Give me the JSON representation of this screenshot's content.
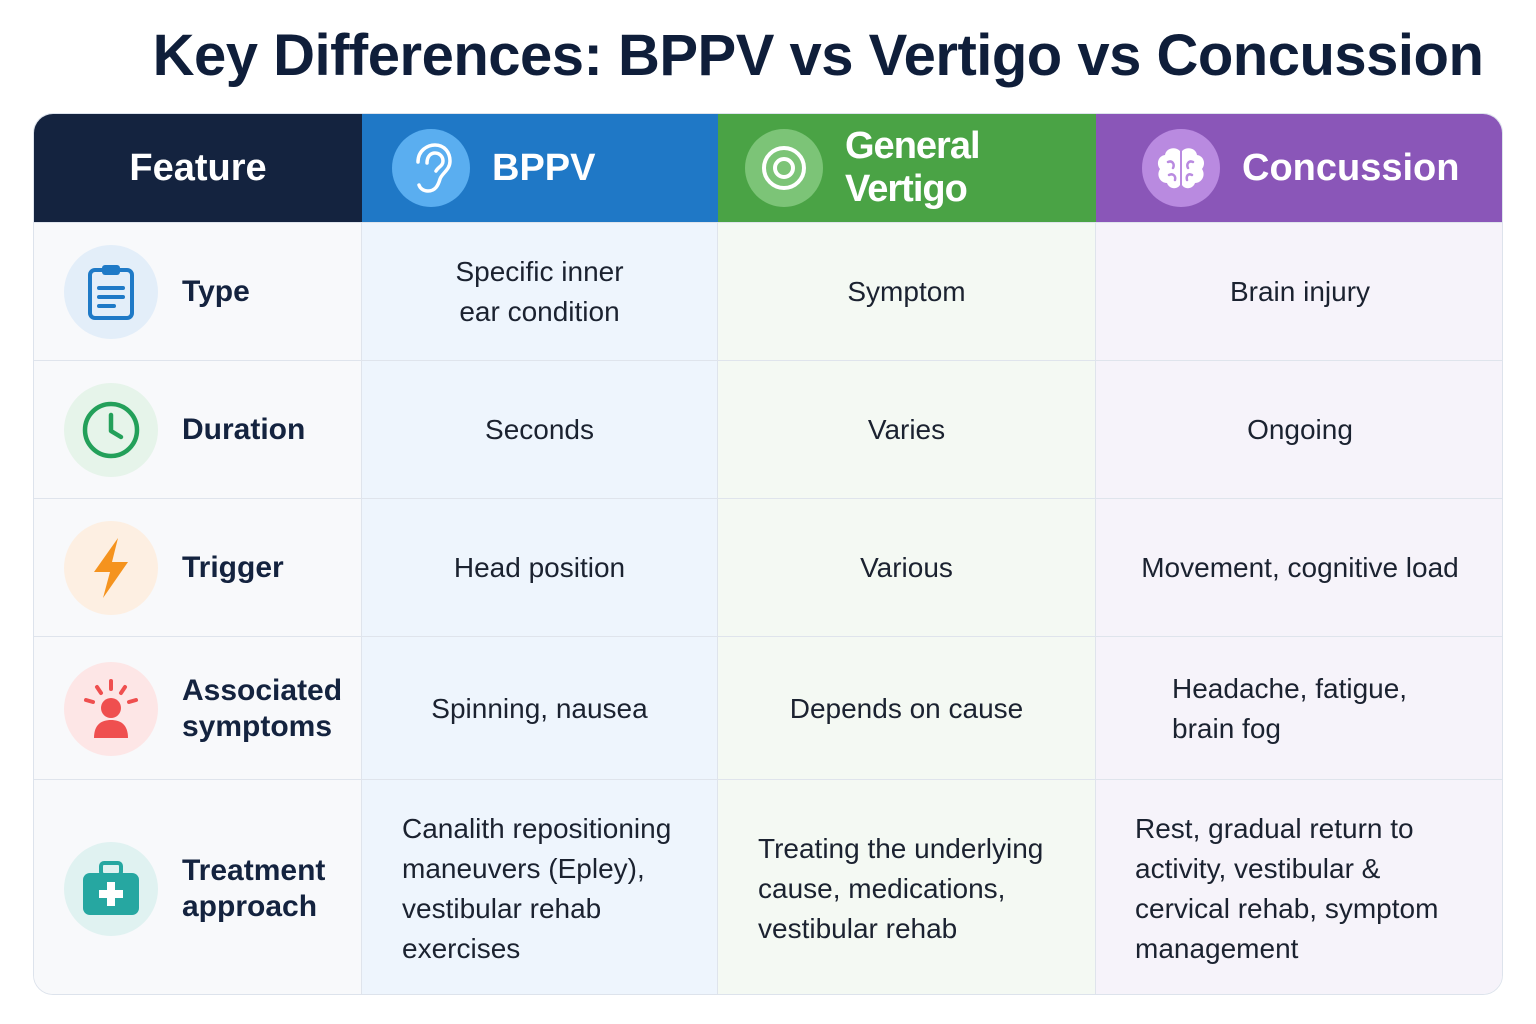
{
  "title": "Key Differences: BPPV vs Vertigo vs Concussion",
  "header": {
    "feature": "Feature",
    "bppv": {
      "label": "BPPV",
      "icon": "ear-icon"
    },
    "vertigo": {
      "label": "General Vertigo",
      "icon": "target-icon"
    },
    "concussion": {
      "label": "Concussion",
      "icon": "brain-icon"
    }
  },
  "colors": {
    "feature_header": "#14233f",
    "bppv_header": "#1f78c6",
    "vertigo_header": "#4aa345",
    "concussion_header": "#8a56b8"
  },
  "rows": [
    {
      "feature": "Type",
      "icon": "clipboard-icon",
      "bppv": "Specific inner\near condition",
      "vertigo": "Symptom",
      "concussion": "Brain injury"
    },
    {
      "feature": "Duration",
      "icon": "clock-icon",
      "bppv": "Seconds",
      "vertigo": "Varies",
      "concussion": "Ongoing"
    },
    {
      "feature": "Trigger",
      "icon": "lightning-icon",
      "bppv": "Head position",
      "vertigo": "Various",
      "concussion": "Movement, cognitive load"
    },
    {
      "feature": "Associated\nsymptoms",
      "icon": "person-alert-icon",
      "bppv": "Spinning, nausea",
      "vertigo": "Depends on cause",
      "concussion": "Headache, fatigue,\nbrain fog"
    },
    {
      "feature": "Treatment\napproach",
      "icon": "medical-kit-icon",
      "bppv": "Canalith repositioning\nmaneuvers (Epley),\nvestibular rehab\nexercises",
      "vertigo": "Treating the underlying\ncause, medications,\nvestibular rehab",
      "concussion": "Rest, gradual return to\nactivity, vestibular &\ncervical rehab, symptom\nmanagement"
    }
  ]
}
